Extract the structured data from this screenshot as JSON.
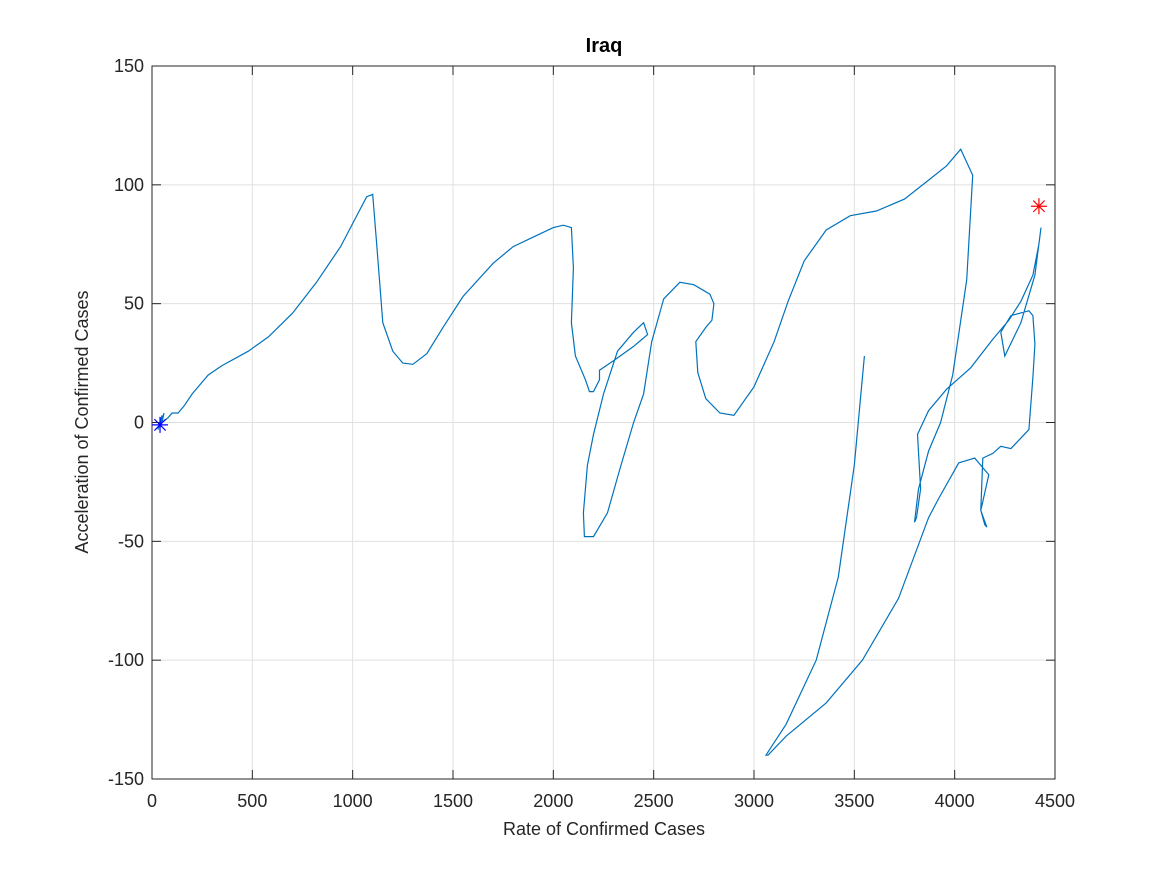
{
  "chart_data": {
    "type": "line",
    "title": "Iraq",
    "x_label": "Rate of Confirmed Cases",
    "y_label": "Acceleration of Confirmed Cases",
    "xlim": [
      0,
      4500
    ],
    "ylim": [
      -150,
      150
    ],
    "xticks": [
      0,
      500,
      1000,
      1500,
      2000,
      2500,
      3000,
      3500,
      4000,
      4500
    ],
    "yticks": [
      -150,
      -100,
      -50,
      0,
      50,
      100,
      150
    ],
    "grid": true,
    "series": [
      {
        "color": "#0072bd",
        "x": [
          30,
          50,
          40,
          60,
          50,
          80,
          100,
          130,
          160,
          200,
          280,
          350,
          480,
          580,
          700,
          820,
          940,
          1070,
          1100,
          1120,
          1150,
          1200,
          1250,
          1300,
          1370,
          1450,
          1550,
          1700,
          1800,
          1900,
          2000,
          2050,
          2090,
          2100,
          2090,
          2110,
          2160,
          2180,
          2200,
          2230,
          2230,
          2300,
          2400,
          2470,
          2450,
          2400,
          2320,
          2250,
          2200,
          2170,
          2150,
          2155,
          2200,
          2270,
          2330,
          2400,
          2450,
          2490,
          2550,
          2630,
          2700,
          2780,
          2800,
          2790,
          2760,
          2710,
          2720,
          2760,
          2830,
          2900,
          3000,
          3100,
          3170,
          3250,
          3360,
          3480,
          3610,
          3750,
          3870,
          3960,
          4030,
          4090,
          4060,
          3990,
          3930,
          3870,
          3820,
          3800,
          3810,
          3830,
          3815,
          3870,
          3960,
          4080,
          4190,
          4270,
          4330,
          4390,
          4420,
          4430,
          4400,
          4330,
          4250,
          4230,
          4280,
          4370,
          4390,
          4400,
          4390,
          4370,
          4280,
          4230,
          4190,
          4140,
          4130,
          4160,
          4150,
          4130,
          4170,
          4100,
          4020,
          3920,
          3870,
          3720,
          3540,
          3360,
          3160,
          3070,
          3060,
          3090,
          3160,
          3310,
          3420,
          3500,
          3550
        ],
        "y": [
          -3,
          3,
          -2,
          4,
          0,
          2,
          4,
          4,
          7,
          12,
          20,
          24,
          30,
          36,
          46,
          59,
          74,
          95,
          96,
          75,
          42,
          30,
          25,
          24.5,
          29,
          40,
          53,
          67,
          74,
          78,
          82,
          83,
          82,
          65,
          42,
          28,
          18,
          13,
          13,
          18,
          22,
          26,
          32,
          37,
          42,
          38,
          30,
          12,
          -5,
          -18,
          -38,
          -48,
          -48,
          -38,
          -20,
          0,
          12,
          34,
          52,
          59,
          58,
          54,
          50,
          43,
          40,
          34,
          21,
          10,
          4,
          3,
          15,
          34,
          51,
          68,
          81,
          87,
          89,
          94,
          102,
          108,
          115,
          104,
          60,
          20,
          0,
          -12,
          -28,
          -42,
          -40,
          -28,
          -5,
          5,
          14,
          23,
          35,
          43,
          51,
          62,
          75,
          82,
          62,
          42,
          28,
          38,
          45,
          47,
          45,
          33,
          19,
          -3,
          -11,
          -10,
          -13,
          -15,
          -37,
          -44,
          -43,
          -37,
          -22,
          -15,
          -17,
          -32,
          -40,
          -74,
          -100,
          -118,
          -132,
          -140,
          -140,
          -136,
          -127,
          -100,
          -65,
          -18,
          28
        ]
      }
    ],
    "markers": [
      {
        "x": 40,
        "y": -1,
        "color": "#0000ff"
      },
      {
        "x": 4420,
        "y": 91,
        "color": "#ff0000"
      }
    ]
  }
}
